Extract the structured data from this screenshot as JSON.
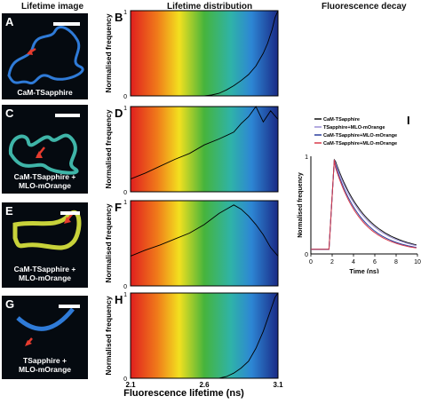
{
  "headers": {
    "col1": "Lifetime image",
    "col2": "Lifetime distribution",
    "col3": "Fluorescence decay"
  },
  "images": [
    {
      "letter": "A",
      "label": "CaM-TSapphire"
    },
    {
      "letter": "C",
      "label": "CaM-TSapphire +\nMLO-mOrange"
    },
    {
      "letter": "E",
      "label": "CaM-TSapphire +\nMLO-mOrange"
    },
    {
      "letter": "G",
      "label": "TSapphire +\nMLO-mOrange"
    }
  ],
  "chart_data": [
    {
      "letter": "B",
      "type": "line",
      "ylabel": "Normalised frequency",
      "ylim": [
        0,
        1
      ],
      "xlim": [
        2.1,
        3.1
      ],
      "x": [
        2.6,
        2.65,
        2.7,
        2.75,
        2.8,
        2.85,
        2.9,
        2.95,
        3.0,
        3.03,
        3.06,
        3.08,
        3.1
      ],
      "y": [
        0.0,
        0.01,
        0.03,
        0.07,
        0.12,
        0.18,
        0.25,
        0.35,
        0.5,
        0.62,
        0.78,
        0.92,
        1.0
      ]
    },
    {
      "letter": "D",
      "type": "line",
      "ylabel": "Normalised frequency",
      "ylim": [
        0,
        1
      ],
      "xlim": [
        2.1,
        3.1
      ],
      "x": [
        2.1,
        2.2,
        2.3,
        2.4,
        2.5,
        2.6,
        2.7,
        2.8,
        2.85,
        2.9,
        2.95,
        3.0,
        3.05,
        3.1
      ],
      "y": [
        0.15,
        0.22,
        0.3,
        0.38,
        0.45,
        0.55,
        0.62,
        0.7,
        0.8,
        0.88,
        1.0,
        0.82,
        0.95,
        0.85
      ]
    },
    {
      "letter": "F",
      "type": "line",
      "ylabel": "Normalised frequency",
      "ylim": [
        0,
        1
      ],
      "xlim": [
        2.1,
        3.1
      ],
      "x": [
        2.1,
        2.2,
        2.3,
        2.4,
        2.5,
        2.6,
        2.7,
        2.8,
        2.85,
        2.9,
        2.95,
        3.0,
        3.05,
        3.1
      ],
      "y": [
        0.35,
        0.42,
        0.48,
        0.55,
        0.62,
        0.72,
        0.85,
        0.95,
        0.9,
        0.82,
        0.72,
        0.6,
        0.45,
        0.35
      ]
    },
    {
      "letter": "H",
      "type": "line",
      "ylabel": "Normalised frequency",
      "ylim": [
        0,
        1
      ],
      "xlim": [
        2.1,
        3.1
      ],
      "x": [
        2.7,
        2.75,
        2.8,
        2.85,
        2.9,
        2.95,
        3.0,
        3.03,
        3.06,
        3.08,
        3.1
      ],
      "y": [
        0.0,
        0.02,
        0.06,
        0.12,
        0.2,
        0.35,
        0.55,
        0.7,
        0.85,
        0.95,
        1.0
      ]
    },
    {
      "letter": "I",
      "type": "line",
      "xlabel": "Time (ns)",
      "ylabel": "Normalised frequency",
      "xlim": [
        0,
        10
      ],
      "ylim": [
        0,
        1
      ],
      "xticks": [
        "0",
        "2",
        "4",
        "6",
        "8",
        "10"
      ],
      "yticks": [
        "0",
        "1"
      ],
      "legend_position": "top-right",
      "series": [
        {
          "name": "CaM-TSapphire",
          "color": "#111111",
          "tau": 3.0
        },
        {
          "name": "TSapphire+MLO-mOrange",
          "color": "#9a8fd6",
          "tau": 2.9
        },
        {
          "name": "CaM-TSapphire+MLO-mOrange",
          "color": "#2b3f9e",
          "tau": 2.6
        },
        {
          "name": "CaM-TSapphire+MLO-mOrange",
          "color": "#d83a4a",
          "tau": 2.5
        }
      ]
    }
  ],
  "axis": {
    "xlabel": "Fluorescence lifetime (ns)",
    "xticks": [
      "2.1",
      "2.6",
      "3.1"
    ],
    "yticks": [
      "0",
      "1"
    ]
  },
  "colors": {
    "arrow": "#e53b2e",
    "spectrum": [
      "#e02020",
      "#f08a1a",
      "#f2e51f",
      "#3bb33b",
      "#2fa0d6",
      "#1a2f8f"
    ]
  }
}
